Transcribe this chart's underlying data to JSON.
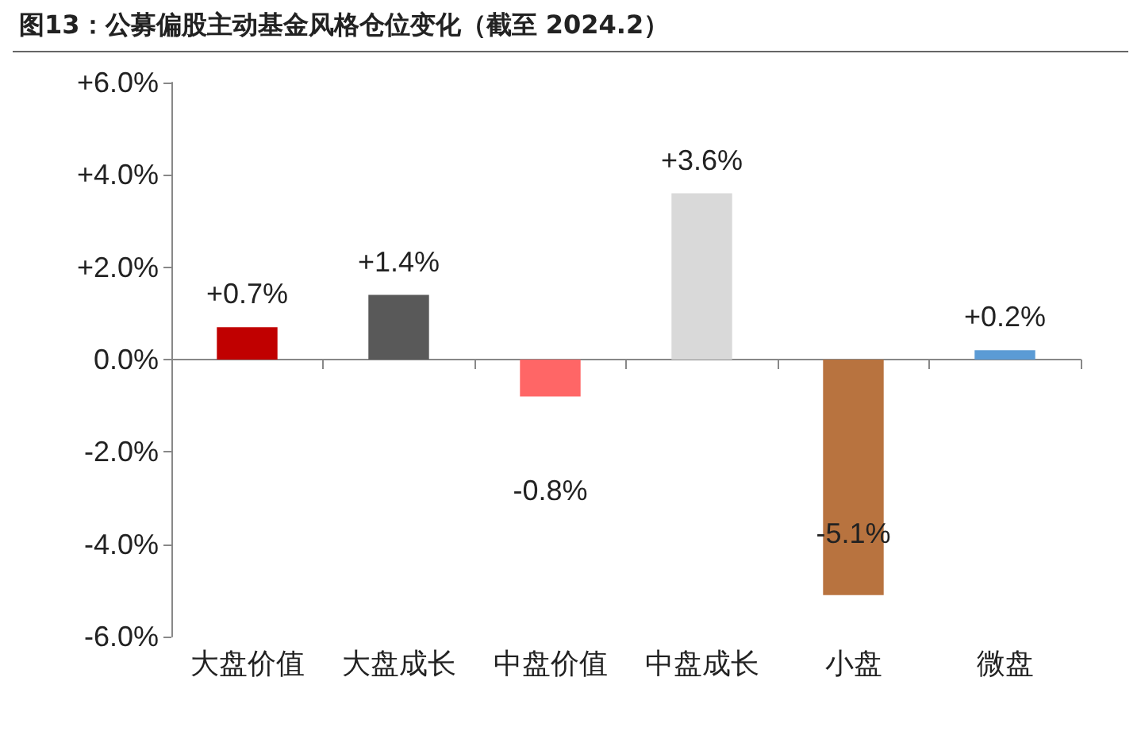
{
  "chart_data": {
    "type": "bar",
    "title": "图13：公募偏股主动基金风格仓位变化（截至 2024.2）",
    "categories": [
      "大盘价值",
      "大盘成长",
      "中盘价值",
      "中盘成长",
      "小盘",
      "微盘"
    ],
    "values": [
      0.7,
      1.4,
      -0.8,
      3.6,
      -5.1,
      0.2
    ],
    "colors": [
      "#c00000",
      "#595959",
      "#ff6666",
      "#d9d9d9",
      "#b8733f",
      "#5b9bd5"
    ],
    "value_labels": [
      "+0.7%",
      "+1.4%",
      "-0.8%",
      "+3.6%",
      "-5.1%",
      "+0.2%"
    ],
    "ylim": [
      -6,
      6
    ],
    "yticks": [
      {
        "value": -6,
        "label": "-6.0%"
      },
      {
        "value": -4,
        "label": "-4.0%"
      },
      {
        "value": -2,
        "label": "-2.0%"
      },
      {
        "value": 0,
        "label": "0.0%"
      },
      {
        "value": 2,
        "label": "+2.0%"
      },
      {
        "value": 4,
        "label": "+4.0%"
      },
      {
        "value": 6,
        "label": "+6.0%"
      }
    ]
  }
}
